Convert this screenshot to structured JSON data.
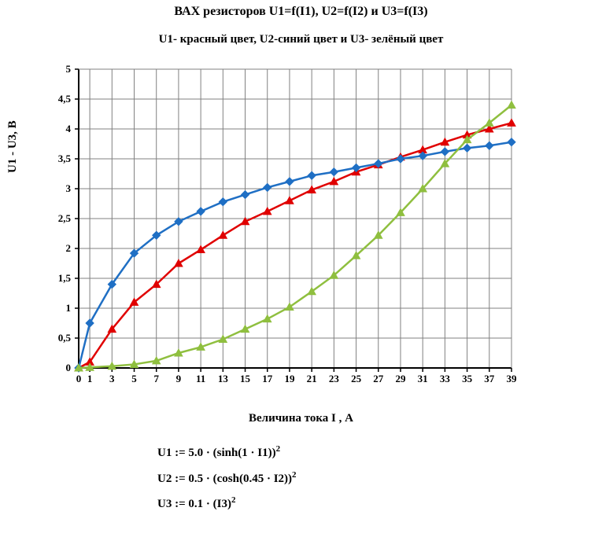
{
  "titles": {
    "main": "ВАХ  резисторов U1=f(I1), U2=f(I2) и U3=f(I3)",
    "sub": "U1- красный цвет, U2-синий цвет и U3- зелёный цвет"
  },
  "axes": {
    "xlabel": "Величина  тока I , А",
    "ylabel": "U1 - U3, В",
    "xlim": [
      0,
      39
    ],
    "ylim": [
      0,
      5
    ],
    "xticks": [
      0,
      1,
      3,
      5,
      7,
      9,
      11,
      13,
      15,
      17,
      19,
      21,
      23,
      25,
      27,
      29,
      31,
      33,
      35,
      37,
      39
    ],
    "yticks": [
      0,
      0.5,
      1,
      1.5,
      2,
      2.5,
      3,
      3.5,
      4,
      4.5,
      5
    ],
    "ytick_labels": [
      "0",
      "0,5",
      "1",
      "1,5",
      "2",
      "2,5",
      "3",
      "3,5",
      "4",
      "4,5",
      "5"
    ],
    "grid_color": "#808080",
    "axis_color": "#000000",
    "background_color": "#ffffff",
    "label_fontsize": 15,
    "tick_fontsize": 13
  },
  "chart": {
    "type": "line",
    "line_width": 2.5,
    "marker_size": 5,
    "series": [
      {
        "name": "U1",
        "color": "#e00000",
        "marker": "triangle",
        "x": [
          0,
          1,
          3,
          5,
          7,
          9,
          11,
          13,
          15,
          17,
          19,
          21,
          23,
          25,
          27,
          29,
          31,
          33,
          35,
          37,
          39
        ],
        "y": [
          0.0,
          0.1,
          0.65,
          1.1,
          1.4,
          1.75,
          1.98,
          2.22,
          2.45,
          2.62,
          2.8,
          2.98,
          3.12,
          3.28,
          3.4,
          3.53,
          3.65,
          3.78,
          3.9,
          4.0,
          4.1
        ]
      },
      {
        "name": "U2",
        "color": "#1f6fc4",
        "marker": "diamond",
        "x": [
          0,
          1,
          3,
          5,
          7,
          9,
          11,
          13,
          15,
          17,
          19,
          21,
          23,
          25,
          27,
          29,
          31,
          33,
          35,
          37,
          39
        ],
        "y": [
          0.0,
          0.75,
          1.4,
          1.92,
          2.22,
          2.45,
          2.62,
          2.78,
          2.9,
          3.02,
          3.12,
          3.22,
          3.28,
          3.35,
          3.42,
          3.5,
          3.55,
          3.62,
          3.68,
          3.72,
          3.78
        ]
      },
      {
        "name": "U3",
        "color": "#8fbf3f",
        "marker": "triangle",
        "x": [
          0,
          1,
          3,
          5,
          7,
          9,
          11,
          13,
          15,
          17,
          19,
          21,
          23,
          25,
          27,
          29,
          31,
          33,
          35,
          37,
          39
        ],
        "y": [
          0.0,
          0.01,
          0.03,
          0.06,
          0.12,
          0.25,
          0.35,
          0.48,
          0.65,
          0.82,
          1.02,
          1.28,
          1.55,
          1.88,
          2.22,
          2.6,
          3.0,
          3.42,
          3.82,
          4.1,
          4.4
        ]
      }
    ]
  },
  "formulas": {
    "f1_pre": "U1 := 5.0 · (sinh(1 · I1))",
    "f1_sup": "2",
    "f2_pre": "U2 := 0.5 · (cosh(0.45 · I2))",
    "f2_sup": "2",
    "f3_pre": "U3 := 0.1 · (I3)",
    "f3_sup": "2"
  }
}
